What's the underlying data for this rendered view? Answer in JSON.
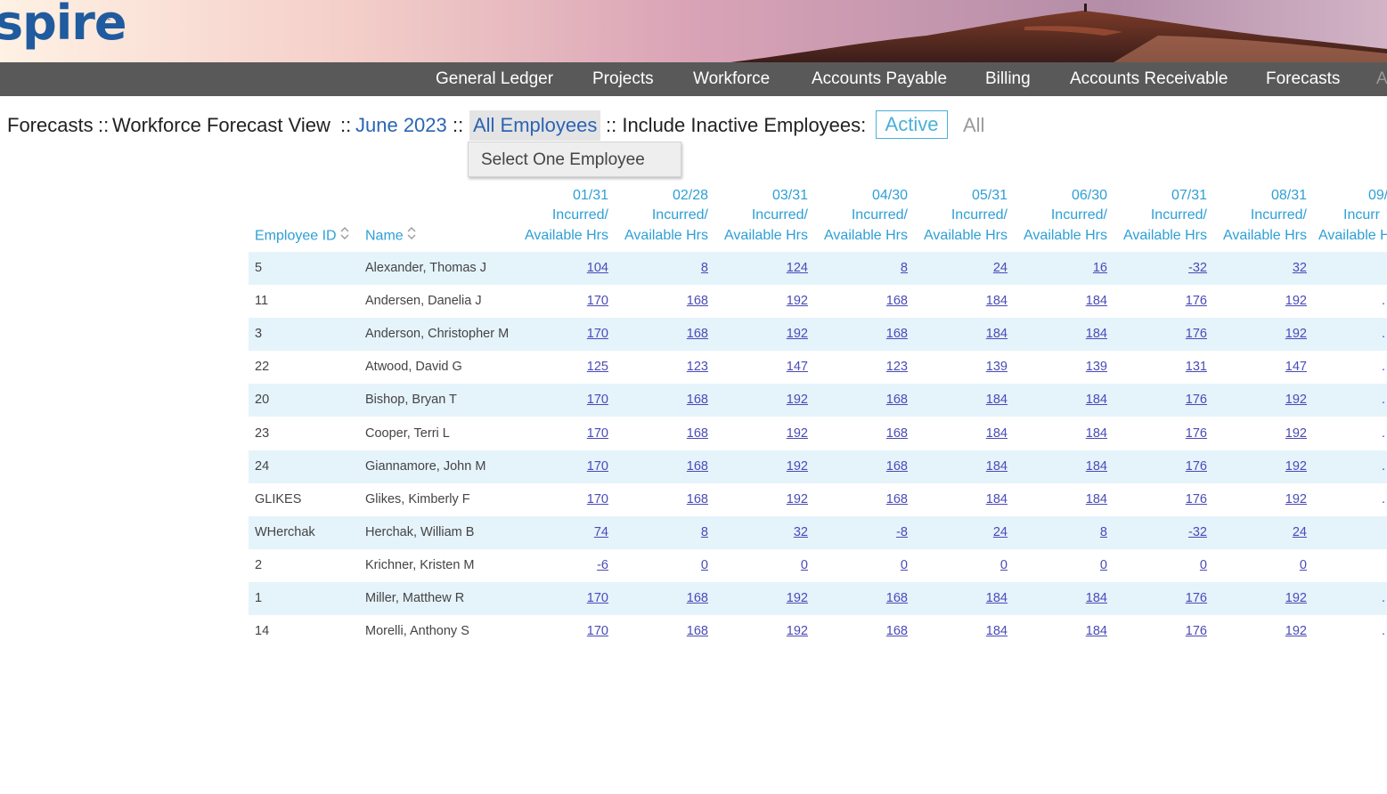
{
  "header": {
    "logo_text": "spire",
    "logo_tm": "™"
  },
  "nav": {
    "items": [
      "General Ledger",
      "Projects",
      "Workforce",
      "Accounts Payable",
      "Billing",
      "Accounts Receivable",
      "Forecasts",
      "A"
    ]
  },
  "breadcrumb": {
    "forecasts": "Forecasts",
    "sep": "::",
    "view": "Workforce Forecast View",
    "period": "June 2023",
    "employees": "All Employees",
    "inactive_label": ":: Include Inactive Employees:",
    "toggle_active": "Active",
    "toggle_all": "All"
  },
  "dropdown": {
    "option": "Select One Employee"
  },
  "table": {
    "col_employee_id": "Employee ID",
    "col_name": "Name",
    "incurred": "Incurred/",
    "available": "Available Hrs",
    "months": [
      "01/31",
      "02/28",
      "03/31",
      "04/30",
      "05/31",
      "06/30",
      "07/31",
      "08/31",
      "09/"
    ],
    "truncated_col": {
      "month": "09/",
      "incurred": "Incurr",
      "available": "Available H"
    },
    "rows": [
      {
        "id": "5",
        "name": "Alexander, Thomas J",
        "values": [
          "104",
          "8",
          "124",
          "8",
          "24",
          "16",
          "-32",
          "32"
        ],
        "overflow": ""
      },
      {
        "id": "11",
        "name": "Andersen, Danelia J",
        "values": [
          "170",
          "168",
          "192",
          "168",
          "184",
          "184",
          "176",
          "192"
        ],
        "overflow": "."
      },
      {
        "id": "3",
        "name": "Anderson, Christopher M",
        "values": [
          "170",
          "168",
          "192",
          "168",
          "184",
          "184",
          "176",
          "192"
        ],
        "overflow": "."
      },
      {
        "id": "22",
        "name": "Atwood, David G",
        "values": [
          "125",
          "123",
          "147",
          "123",
          "139",
          "139",
          "131",
          "147"
        ],
        "overflow": "."
      },
      {
        "id": "20",
        "name": "Bishop, Bryan T",
        "values": [
          "170",
          "168",
          "192",
          "168",
          "184",
          "184",
          "176",
          "192"
        ],
        "overflow": "."
      },
      {
        "id": "23",
        "name": "Cooper, Terri L",
        "values": [
          "170",
          "168",
          "192",
          "168",
          "184",
          "184",
          "176",
          "192"
        ],
        "overflow": "."
      },
      {
        "id": "24",
        "name": "Giannamore, John M",
        "values": [
          "170",
          "168",
          "192",
          "168",
          "184",
          "184",
          "176",
          "192"
        ],
        "overflow": "."
      },
      {
        "id": "GLIKES",
        "name": "Glikes, Kimberly F",
        "values": [
          "170",
          "168",
          "192",
          "168",
          "184",
          "184",
          "176",
          "192"
        ],
        "overflow": "."
      },
      {
        "id": "WHerchak",
        "name": "Herchak, William B",
        "values": [
          "74",
          "8",
          "32",
          "-8",
          "24",
          "8",
          "-32",
          "24"
        ],
        "overflow": ""
      },
      {
        "id": "2",
        "name": "Krichner, Kristen M",
        "values": [
          "-6",
          "0",
          "0",
          "0",
          "0",
          "0",
          "0",
          "0"
        ],
        "overflow": ""
      },
      {
        "id": "1",
        "name": "Miller, Matthew R",
        "values": [
          "170",
          "168",
          "192",
          "168",
          "184",
          "184",
          "176",
          "192"
        ],
        "overflow": "."
      },
      {
        "id": "14",
        "name": "Morelli, Anthony S",
        "values": [
          "170",
          "168",
          "192",
          "168",
          "184",
          "184",
          "176",
          "192"
        ],
        "overflow": "."
      }
    ]
  },
  "colors": {
    "nav_bg": "#595959",
    "link": "#2b64b4",
    "header_text": "#2e9fd6",
    "row_shade": "#e5f3fb",
    "number_link": "#4a4ab8"
  }
}
